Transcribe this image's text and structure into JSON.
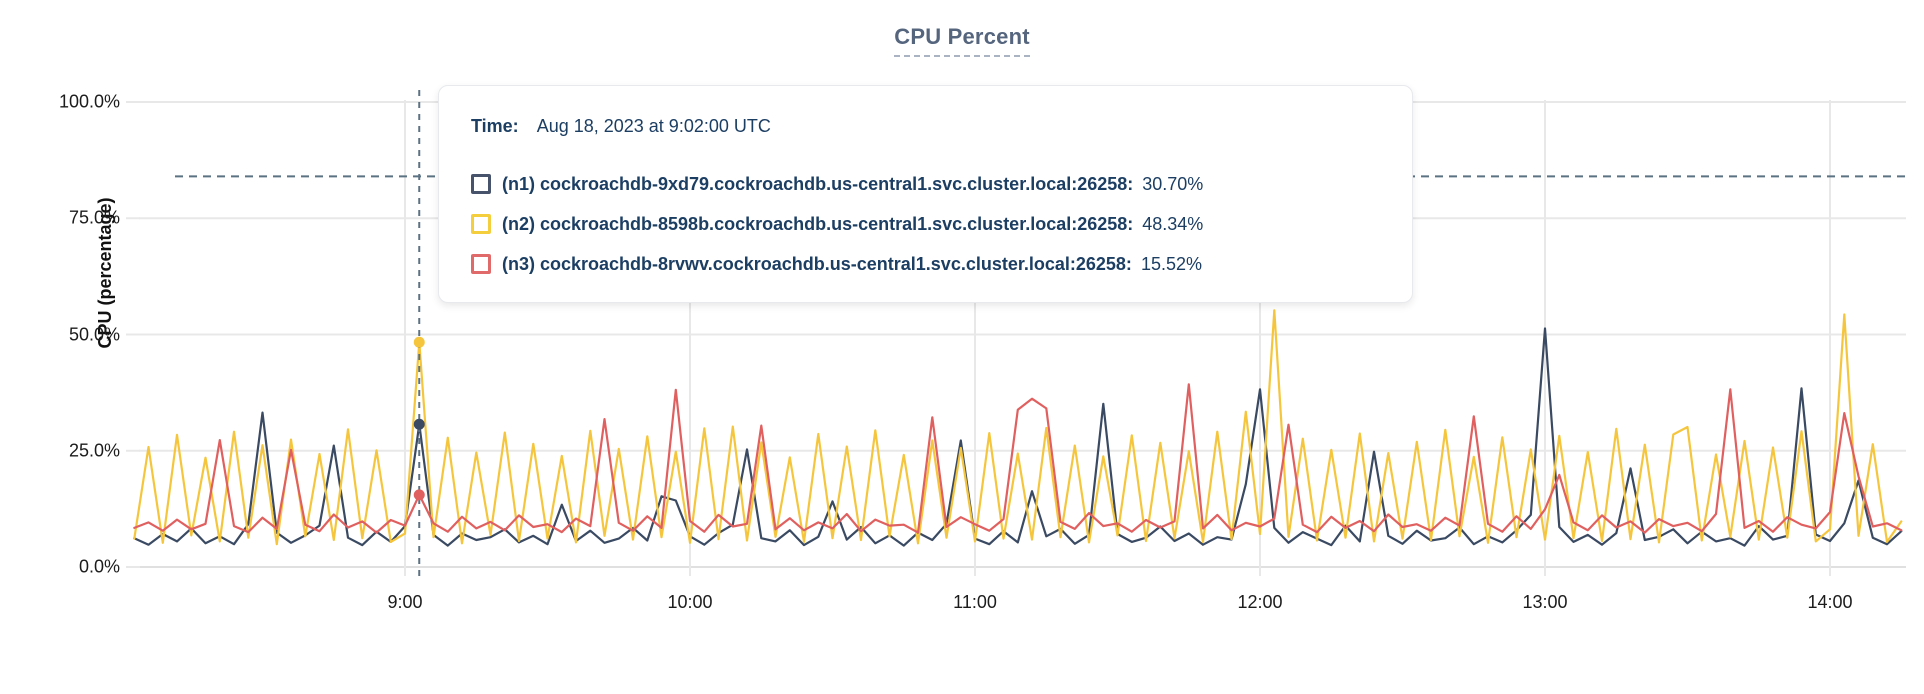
{
  "title": "CPU Percent",
  "tooltip": {
    "time_label": "Time:",
    "time_value": "Aug 18, 2023 at 9:02:00 UTC",
    "rows": [
      {
        "name": "(n1) cockroachdb-9xd79.cockroachdb.us-central1.svc.cluster.local:26258:",
        "value": "30.70%",
        "color": "#46536b"
      },
      {
        "name": "(n2) cockroachdb-8598b.cockroachdb.us-central1.svc.cluster.local:26258:",
        "value": "48.34%",
        "color": "#f5ce3e"
      },
      {
        "name": "(n3) cockroachdb-8rvwv.cockroachdb.us-central1.svc.cluster.local:26258:",
        "value": "15.52%",
        "color": "#e06a6a"
      }
    ]
  },
  "chart_data": {
    "type": "line",
    "title": "CPU Percent",
    "xlabel": "",
    "ylabel": "CPU (percentage)",
    "ylim": [
      0,
      100
    ],
    "grid": true,
    "legend_position": "tooltip-overlay",
    "y_ticks": [
      {
        "percent": 0,
        "label": "0.0%"
      },
      {
        "percent": 25,
        "label": "25.0%"
      },
      {
        "percent": 50,
        "label": "50.0%"
      },
      {
        "percent": 75,
        "label": "75.0%"
      },
      {
        "percent": 100,
        "label": "100.0%"
      }
    ],
    "x_ticks": [
      {
        "minute": 540,
        "label": "9:00"
      },
      {
        "minute": 600,
        "label": "10:00"
      },
      {
        "minute": 660,
        "label": "11:00"
      },
      {
        "minute": 720,
        "label": "12:00"
      },
      {
        "minute": 780,
        "label": "13:00"
      },
      {
        "minute": 840,
        "label": "14:00"
      }
    ],
    "threshold_percent": 84,
    "hover": {
      "minute": 543,
      "time_label": "9:02:00",
      "values": [
        30.7,
        48.34,
        15.52
      ]
    },
    "start_minute": 483,
    "step_minutes": 3,
    "series": [
      {
        "name": "(n1) cockroachdb-9xd79.cockroachdb.us-central1.svc.cluster.local:26258",
        "color": "#3a4a63",
        "values": [
          6.2,
          4.8,
          7.1,
          5.5,
          8.3,
          5.1,
          6.6,
          4.9,
          9.2,
          33.2,
          7.4,
          5.2,
          6.8,
          8.9,
          26.1,
          6.3,
          4.7,
          7.6,
          5.4,
          8.8,
          30.7,
          6.9,
          4.6,
          7.2,
          5.8,
          6.4,
          8.1,
          5.3,
          6.7,
          4.9,
          13.4,
          5.6,
          7.8,
          5.2,
          6.1,
          8.4,
          5.7,
          15.2,
          14.3,
          6.6,
          4.8,
          7.3,
          9.1,
          25.3,
          6.2,
          5.5,
          7.9,
          4.7,
          6.5,
          14.1,
          5.9,
          8.6,
          5.1,
          6.8,
          4.6,
          7.4,
          5.8,
          9.3,
          27.2,
          6.1,
          4.9,
          7.7,
          5.3,
          16.3,
          6.6,
          8.2,
          5.0,
          6.9,
          35.1,
          7.1,
          5.4,
          6.3,
          8.7,
          5.6,
          7.2,
          4.8,
          6.4,
          5.9,
          17.8,
          38.2,
          8.4,
          5.2,
          7.5,
          6.1,
          4.7,
          8.9,
          5.5,
          24.8,
          6.7,
          5.0,
          7.8,
          5.7,
          6.2,
          8.5,
          4.9,
          6.6,
          5.3,
          7.9,
          11.2,
          51.3,
          8.6,
          5.4,
          6.9,
          4.8,
          7.3,
          21.2,
          5.8,
          6.5,
          8.1,
          5.1,
          7.6,
          5.5,
          6.2,
          4.6,
          8.8,
          5.9,
          6.7,
          38.4,
          7.0,
          5.6,
          9.4,
          18.6,
          6.3,
          4.9,
          7.7
        ]
      },
      {
        "name": "(n2) cockroachdb-8598b.cockroachdb.us-central1.svc.cluster.local:26258",
        "color": "#f5c63d",
        "values": [
          6.1,
          25.8,
          5.2,
          28.4,
          6.8,
          23.5,
          5.5,
          29.1,
          6.3,
          26.2,
          4.9,
          27.4,
          6.6,
          24.3,
          5.8,
          29.6,
          6.2,
          25.1,
          5.4,
          7.2,
          48.34,
          6.4,
          27.8,
          5.1,
          24.6,
          6.9,
          28.9,
          5.6,
          26.5,
          6.1,
          23.9,
          5.3,
          29.3,
          6.7,
          25.4,
          5.9,
          28.1,
          6.4,
          24.8,
          5.2,
          29.8,
          6.0,
          30.2,
          5.7,
          26.8,
          6.5,
          23.6,
          5.4,
          28.6,
          6.2,
          25.9,
          5.8,
          29.4,
          6.6,
          24.1,
          5.1,
          27.2,
          6.3,
          25.6,
          5.5,
          28.8,
          6.1,
          24.4,
          5.9,
          29.9,
          6.4,
          26.1,
          5.3,
          23.8,
          6.8,
          28.3,
          5.6,
          26.7,
          6.2,
          24.9,
          5.4,
          29.1,
          6.0,
          33.4,
          7.1,
          55.2,
          6.5,
          27.6,
          5.7,
          25.2,
          6.3,
          28.7,
          5.5,
          24.5,
          6.1,
          26.9,
          5.8,
          29.5,
          6.6,
          23.7,
          5.2,
          27.9,
          6.4,
          25.3,
          5.9,
          28.2,
          6.2,
          24.7,
          5.6,
          29.7,
          6.0,
          26.3,
          5.3,
          28.5,
          30.1,
          5.7,
          24.2,
          6.5,
          27.1,
          5.9,
          25.7,
          6.3,
          29.2,
          5.5,
          8.1,
          54.3,
          6.7,
          26.4,
          5.4,
          9.8
        ]
      },
      {
        "name": "(n3) cockroachdb-8rvwv.cockroachdb.us-central1.svc.cluster.local:26258",
        "color": "#e06060",
        "values": [
          8.4,
          9.6,
          7.8,
          10.2,
          8.1,
          9.3,
          27.3,
          8.8,
          7.5,
          10.6,
          8.2,
          25.2,
          9.1,
          7.7,
          11.3,
          8.5,
          9.8,
          7.4,
          10.1,
          8.9,
          15.52,
          9.4,
          7.6,
          10.8,
          8.3,
          9.7,
          7.9,
          11.1,
          8.6,
          9.2,
          7.5,
          10.4,
          8.8,
          31.8,
          9.5,
          7.8,
          10.9,
          8.4,
          38.1,
          9.9,
          7.6,
          11.2,
          8.7,
          9.3,
          30.4,
          8.1,
          10.5,
          7.9,
          9.6,
          8.3,
          11.4,
          7.7,
          10.2,
          8.9,
          9.1,
          7.4,
          32.2,
          8.6,
          10.7,
          9.2,
          7.8,
          10.3,
          33.8,
          36.2,
          34.1,
          9.7,
          8.2,
          11.6,
          8.8,
          9.4,
          7.6,
          10.1,
          8.5,
          9.8,
          39.3,
          8.3,
          11.2,
          7.9,
          9.5,
          8.7,
          10.4,
          30.6,
          9.1,
          7.5,
          10.8,
          8.4,
          9.9,
          7.7,
          11.3,
          8.6,
          9.2,
          7.8,
          10.6,
          8.9,
          32.4,
          9.3,
          7.6,
          10.9,
          8.2,
          12.4,
          19.8,
          9.6,
          7.9,
          11.1,
          8.5,
          9.8,
          7.4,
          10.3,
          8.8,
          9.5,
          7.7,
          11.4,
          38.2,
          8.4,
          9.9,
          7.6,
          10.7,
          9.1,
          8.3,
          11.8,
          33.1,
          19.5,
          8.7,
          9.4,
          7.9
        ]
      }
    ],
    "colors": {
      "gridline": "#e8e8e8",
      "axis_line": "#e0e0e0",
      "dashed_guides": "#5b7282"
    }
  }
}
